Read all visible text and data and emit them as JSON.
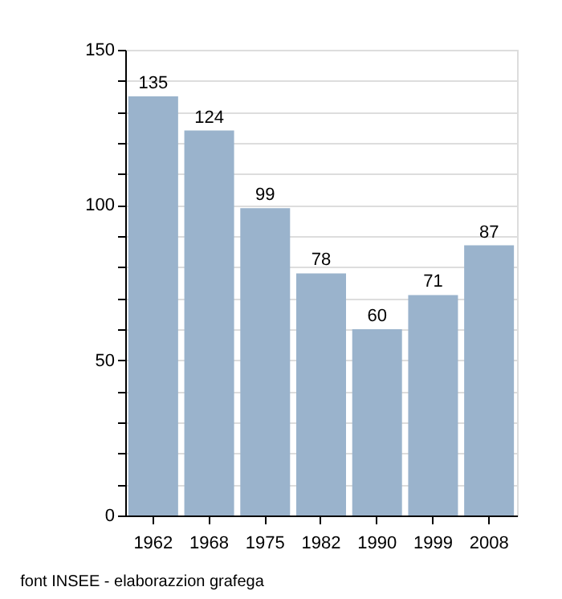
{
  "chart_data": {
    "type": "bar",
    "categories": [
      "1962",
      "1968",
      "1975",
      "1982",
      "1990",
      "1999",
      "2008"
    ],
    "values": [
      135,
      124,
      99,
      78,
      60,
      71,
      87
    ],
    "color": "#9ab3cc",
    "ylim": [
      0,
      150
    ],
    "yticks": [
      0,
      {
        "value": 10,
        "label": null
      },
      {
        "value": 20,
        "label": null
      },
      {
        "value": 30,
        "label": null
      },
      {
        "value": 40,
        "label": null
      },
      50,
      {
        "value": 60,
        "label": null
      },
      {
        "value": 70,
        "label": null
      },
      {
        "value": 80,
        "label": null
      },
      {
        "value": 90,
        "label": null
      },
      100,
      {
        "value": 110,
        "label": null
      },
      {
        "value": 120,
        "label": null
      },
      {
        "value": 130,
        "label": null
      },
      {
        "value": 140,
        "label": null
      },
      150
    ],
    "grid": "y",
    "data_labels": true,
    "annotations": [
      "font INSEE - elaborazzion grafega"
    ]
  }
}
